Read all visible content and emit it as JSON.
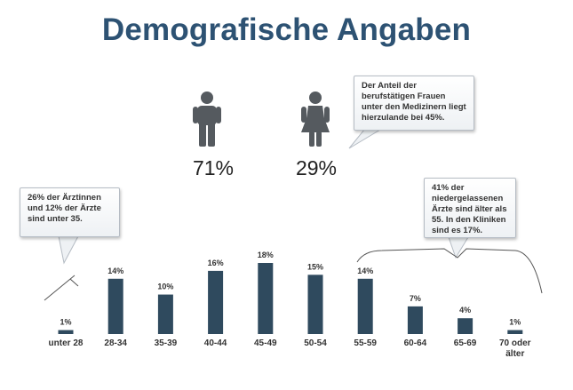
{
  "title": "Demografische Angaben",
  "gender": {
    "male_pct": "71%",
    "female_pct": "29%",
    "male_icon": "male-person-icon",
    "female_icon": "female-person-icon",
    "icon_color": "#555a5f"
  },
  "callouts": {
    "women": [
      "Der Anteil der",
      "berufstätigen Frauen",
      "unter den Medizinern liegt",
      "hierzulande bei 45%."
    ],
    "young": [
      "26% der Ärztinnen",
      "und 12% der Ärzte",
      "sind unter 35."
    ],
    "old": [
      "41% der",
      "niedergelassenen",
      "Ärzte sind älter als",
      "55. In den Kliniken",
      "sind es 17%."
    ]
  },
  "colors": {
    "bar": "#2f4a5e",
    "title": "#2d5273"
  },
  "chart_data": {
    "type": "bar",
    "categories": [
      "unter 28",
      "28-34",
      "35-39",
      "40-44",
      "45-49",
      "50-54",
      "55-59",
      "60-64",
      "65-69",
      "70 oder älter"
    ],
    "category_lines": [
      [
        "unter 28"
      ],
      [
        "28-34"
      ],
      [
        "35-39"
      ],
      [
        "40-44"
      ],
      [
        "45-49"
      ],
      [
        "50-54"
      ],
      [
        "55-59"
      ],
      [
        "60-64"
      ],
      [
        "65-69"
      ],
      [
        "70 oder",
        "älter"
      ]
    ],
    "values": [
      1,
      14,
      10,
      16,
      18,
      15,
      14,
      7,
      4,
      1
    ],
    "labels": [
      "1%",
      "14%",
      "10%",
      "16%",
      "18%",
      "15%",
      "14%",
      "7%",
      "4%",
      "1%"
    ],
    "unit": "%",
    "ylim": [
      0,
      18
    ],
    "grid": false,
    "legend": "none"
  }
}
